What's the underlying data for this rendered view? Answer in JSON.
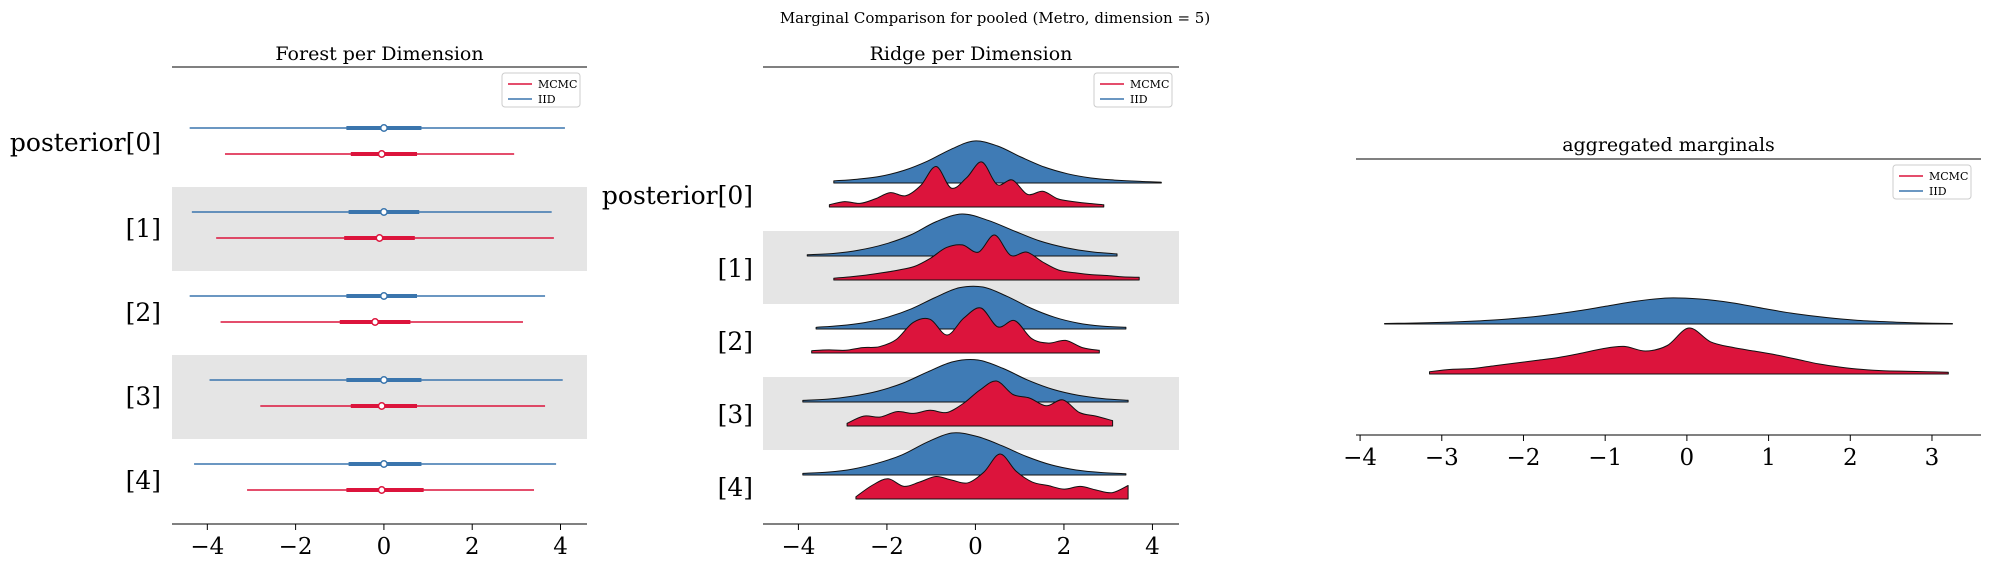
{
  "suptitle": "Marginal Comparison for pooled (Metro, dimension = 5)",
  "colors": {
    "mcmc": "#dc143c",
    "iid": "#3a75ad",
    "iid_fill": "#3f7bb5",
    "band": "#e5e5e5",
    "axis": "#000000",
    "outline": "#111111"
  },
  "legend": [
    "MCMC",
    "IID"
  ],
  "row_labels": [
    "posterior[0]",
    "[1]",
    "[2]",
    "[3]",
    "[4]"
  ],
  "x_ticks": [
    "−4",
    "−2",
    "0",
    "2",
    "4"
  ],
  "x_ticks_agg": [
    "−4",
    "−3",
    "−2",
    "−1",
    "0",
    "1",
    "2",
    "3"
  ],
  "chart_data": [
    {
      "type": "forest",
      "title": "Forest per Dimension",
      "xlim": [
        -4.8,
        4.6
      ],
      "series": [
        {
          "name": "IID",
          "rows": [
            {
              "dim": "posterior[0]",
              "min": -4.4,
              "q_low": -0.85,
              "median": 0.0,
              "q_high": 0.85,
              "max": 4.1
            },
            {
              "dim": "[1]",
              "min": -4.35,
              "q_low": -0.8,
              "median": 0.0,
              "q_high": 0.8,
              "max": 3.8
            },
            {
              "dim": "[2]",
              "min": -4.4,
              "q_low": -0.85,
              "median": 0.0,
              "q_high": 0.75,
              "max": 3.65
            },
            {
              "dim": "[3]",
              "min": -3.95,
              "q_low": -0.85,
              "median": 0.0,
              "q_high": 0.85,
              "max": 4.05
            },
            {
              "dim": "[4]",
              "min": -4.3,
              "q_low": -0.8,
              "median": 0.0,
              "q_high": 0.85,
              "max": 3.9
            }
          ]
        },
        {
          "name": "MCMC",
          "rows": [
            {
              "dim": "posterior[0]",
              "min": -3.6,
              "q_low": -0.75,
              "median": -0.05,
              "q_high": 0.75,
              "max": 2.95
            },
            {
              "dim": "[1]",
              "min": -3.8,
              "q_low": -0.9,
              "median": -0.1,
              "q_high": 0.7,
              "max": 3.85
            },
            {
              "dim": "[2]",
              "min": -3.7,
              "q_low": -1.0,
              "median": -0.2,
              "q_high": 0.6,
              "max": 3.15
            },
            {
              "dim": "[3]",
              "min": -2.8,
              "q_low": -0.75,
              "median": -0.05,
              "q_high": 0.75,
              "max": 3.65
            },
            {
              "dim": "[4]",
              "min": -3.1,
              "q_low": -0.85,
              "median": -0.05,
              "q_high": 0.9,
              "max": 3.4
            }
          ]
        }
      ]
    },
    {
      "type": "ridgeline",
      "title": "Ridge per Dimension",
      "xlim": [
        -4.8,
        4.6
      ],
      "rows": [
        {
          "dim": "posterior[0]",
          "IID": {
            "xmin": -3.2,
            "xmax": 4.2,
            "density": [
              0.05,
              0.09,
              0.16,
              0.3,
              0.52,
              0.8,
              1.0,
              0.88,
              0.62,
              0.38,
              0.22,
              0.12,
              0.07,
              0.04,
              0.02
            ]
          },
          "MCMC": {
            "xmin": -3.3,
            "xmax": 2.9,
            "density": [
              0.05,
              0.12,
              0.08,
              0.18,
              0.32,
              0.25,
              0.48,
              0.9,
              0.42,
              0.65,
              1.0,
              0.5,
              0.6,
              0.28,
              0.35,
              0.18,
              0.12,
              0.08,
              0.05
            ]
          }
        },
        {
          "dim": "[1]",
          "IID": {
            "xmin": -3.8,
            "xmax": 3.2,
            "density": [
              0.03,
              0.06,
              0.14,
              0.28,
              0.5,
              0.82,
              1.0,
              0.85,
              0.6,
              0.36,
              0.2,
              0.1,
              0.05
            ]
          },
          "MCMC": {
            "xmin": -3.2,
            "xmax": 3.7,
            "density": [
              0.04,
              0.07,
              0.11,
              0.16,
              0.22,
              0.3,
              0.48,
              0.72,
              0.78,
              0.62,
              1.0,
              0.55,
              0.62,
              0.4,
              0.22,
              0.16,
              0.12,
              0.1,
              0.07,
              0.06
            ]
          }
        },
        {
          "dim": "[2]",
          "IID": {
            "xmin": -3.6,
            "xmax": 3.4,
            "density": [
              0.04,
              0.08,
              0.15,
              0.28,
              0.48,
              0.75,
              0.98,
              1.0,
              0.78,
              0.5,
              0.28,
              0.14,
              0.07,
              0.04
            ]
          },
          "MCMC": {
            "xmin": -3.7,
            "xmax": 2.8,
            "density": [
              0.05,
              0.07,
              0.06,
              0.12,
              0.14,
              0.3,
              0.68,
              0.75,
              0.4,
              0.78,
              1.0,
              0.58,
              0.72,
              0.32,
              0.22,
              0.28,
              0.12,
              0.06
            ]
          }
        },
        {
          "dim": "[3]",
          "IID": {
            "xmin": -3.9,
            "xmax": 3.45,
            "density": [
              0.04,
              0.07,
              0.14,
              0.26,
              0.45,
              0.72,
              0.96,
              1.0,
              0.8,
              0.52,
              0.3,
              0.16,
              0.08,
              0.04
            ]
          },
          "MCMC": {
            "xmin": -2.9,
            "xmax": 3.1,
            "density": [
              0.06,
              0.22,
              0.2,
              0.32,
              0.28,
              0.35,
              0.3,
              0.5,
              0.8,
              1.0,
              0.7,
              0.62,
              0.45,
              0.58,
              0.3,
              0.22,
              0.12
            ]
          }
        },
        {
          "dim": "[4]",
          "IID": {
            "xmin": -3.9,
            "xmax": 3.4,
            "density": [
              0.04,
              0.07,
              0.14,
              0.28,
              0.48,
              0.78,
              1.0,
              0.92,
              0.7,
              0.44,
              0.24,
              0.12,
              0.06,
              0.03
            ]
          },
          "MCMC": {
            "xmin": -2.7,
            "xmax": 3.45,
            "density": [
              0.05,
              0.3,
              0.45,
              0.28,
              0.38,
              0.5,
              0.42,
              0.36,
              0.6,
              1.0,
              0.62,
              0.38,
              0.3,
              0.22,
              0.28,
              0.2,
              0.14,
              0.3
            ]
          }
        }
      ]
    },
    {
      "type": "ridgeline",
      "title": "aggregated marginals",
      "xlim": [
        -4.05,
        3.6
      ],
      "rows": [
        {
          "dim": "aggregated",
          "IID": {
            "xmin": -3.7,
            "xmax": 3.25,
            "density": [
              0.02,
              0.04,
              0.07,
              0.12,
              0.2,
              0.32,
              0.48,
              0.68,
              0.88,
              1.0,
              0.96,
              0.82,
              0.6,
              0.4,
              0.25,
              0.14,
              0.08,
              0.04,
              0.02
            ]
          },
          "MCMC": {
            "xmin": -3.15,
            "xmax": 3.2,
            "density": [
              0.05,
              0.1,
              0.12,
              0.18,
              0.24,
              0.3,
              0.36,
              0.45,
              0.55,
              0.6,
              0.5,
              0.62,
              1.0,
              0.7,
              0.58,
              0.5,
              0.42,
              0.32,
              0.22,
              0.15,
              0.1,
              0.07,
              0.06,
              0.05,
              0.04
            ]
          }
        }
      ]
    }
  ]
}
